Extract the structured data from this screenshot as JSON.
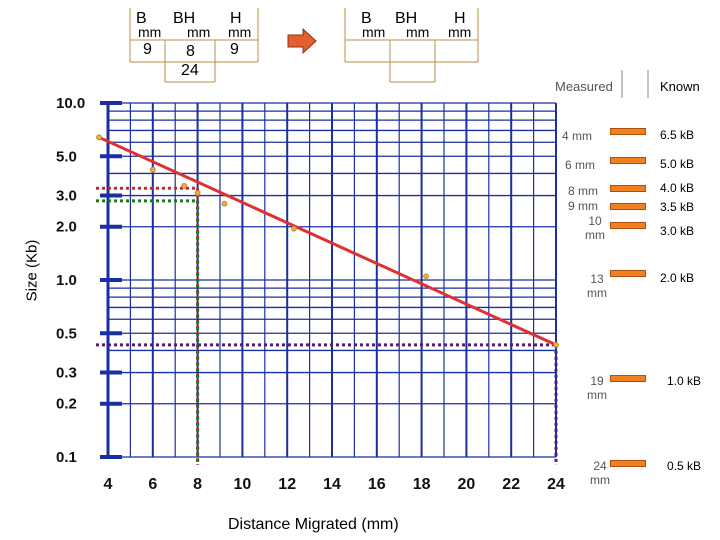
{
  "gel_tables": {
    "left": {
      "headers": [
        "B",
        "BH",
        "H"
      ],
      "units": [
        "mm",
        "mm",
        "mm"
      ],
      "row1": [
        "9",
        "8",
        "9"
      ],
      "row2_bh": "24"
    },
    "right": {
      "headers": [
        "B",
        "BH",
        "H"
      ],
      "units": [
        "mm",
        "mm",
        "mm"
      ]
    }
  },
  "column_headers": {
    "measured": "Measured",
    "known": "Known"
  },
  "measured_labels": [
    "4 mm",
    "6 mm",
    "8 mm",
    "9 mm",
    "10 mm",
    "13 mm",
    "19 mm",
    "24 mm"
  ],
  "known_labels": [
    "6.5 kB",
    "5.0 kB",
    "4.0 kB",
    "3.5 kB",
    "3.0 kB",
    "2.0 kB",
    "1.0 kB",
    "0.5 kB"
  ],
  "colors": {
    "grid": "#1a2fa0",
    "fit_line": "#e03030",
    "band": "#f08020",
    "red_dotted": "#c03020",
    "green_dotted": "#1a7a1a",
    "purple_dotted": "#5a1a7a"
  },
  "chart_data": {
    "type": "line",
    "title": "",
    "xlabel": "Distance Migrated (mm)",
    "ylabel": "Size (Kb)",
    "x_scale": "linear",
    "y_scale": "log",
    "xlim": [
      4,
      24
    ],
    "ylim": [
      0.1,
      10.0
    ],
    "x_ticks": [
      "4",
      "6",
      "8",
      "10",
      "12",
      "14",
      "16",
      "18",
      "20",
      "22",
      "24"
    ],
    "y_ticks": [
      "10.0",
      "5.0",
      "3.0",
      "2.0",
      "1.0",
      "0.5",
      "0.3",
      "0.2",
      "0.1"
    ],
    "y_tick_values": [
      10.0,
      5.0,
      3.0,
      2.0,
      1.0,
      0.5,
      0.3,
      0.2,
      0.1
    ],
    "series": [
      {
        "points": [
          [
            3.6,
            6.4
          ],
          [
            6.0,
            4.2
          ],
          [
            7.4,
            3.4
          ],
          [
            8.0,
            3.1
          ],
          [
            9.2,
            2.7
          ],
          [
            12.3,
            1.95
          ],
          [
            18.2,
            1.05
          ],
          [
            24.0,
            0.43
          ]
        ]
      }
    ],
    "guides": [
      {
        "x": 8,
        "y": 3.3,
        "color": "red"
      },
      {
        "x": 8,
        "y": 2.8,
        "color": "green"
      },
      {
        "x": 24,
        "y": 0.43,
        "color": "purple"
      }
    ],
    "grid": true
  }
}
